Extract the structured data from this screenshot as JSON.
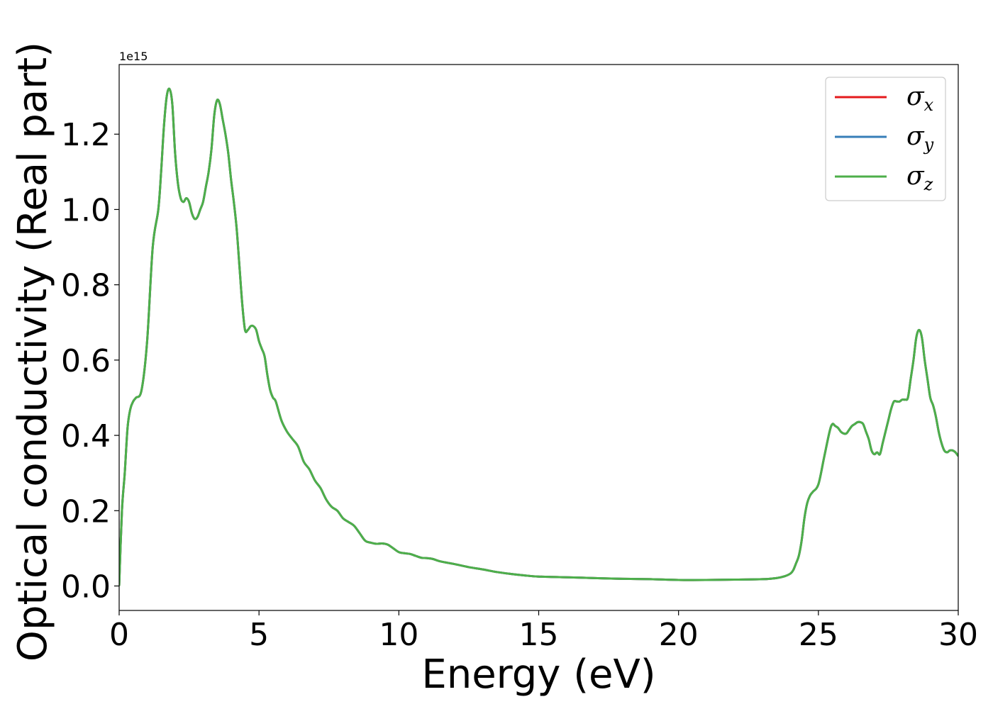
{
  "chart_data": {
    "type": "line",
    "title": "",
    "xlabel": "Energy (eV)",
    "ylabel": "Optical conductivity (Real part)",
    "offset_text": "1e15",
    "xlim": [
      0,
      30
    ],
    "ylim": [
      -0.065,
      1.385
    ],
    "xticks": [
      0,
      5,
      10,
      15,
      20,
      25,
      30
    ],
    "xtick_labels": [
      "0",
      "5",
      "10",
      "15",
      "20",
      "25",
      "30"
    ],
    "yticks": [
      0.0,
      0.2,
      0.4,
      0.6,
      0.8,
      1.0,
      1.2
    ],
    "ytick_labels": [
      "0.0",
      "0.2",
      "0.4",
      "0.6",
      "0.8",
      "1.0",
      "1.2"
    ],
    "grid": false,
    "legend_position": "top-right",
    "x": [
      0,
      0.1,
      0.2,
      0.3,
      0.4,
      0.5,
      0.6,
      0.8,
      1.0,
      1.2,
      1.4,
      1.5,
      1.6,
      1.7,
      1.8,
      1.9,
      2.0,
      2.1,
      2.2,
      2.3,
      2.4,
      2.5,
      2.6,
      2.7,
      2.8,
      2.9,
      3.0,
      3.1,
      3.2,
      3.3,
      3.4,
      3.5,
      3.6,
      3.7,
      3.8,
      3.9,
      4.0,
      4.1,
      4.2,
      4.3,
      4.4,
      4.5,
      4.6,
      4.7,
      4.8,
      4.9,
      5.0,
      5.1,
      5.2,
      5.3,
      5.4,
      5.5,
      5.6,
      5.8,
      6.0,
      6.2,
      6.4,
      6.6,
      6.8,
      7.0,
      7.2,
      7.4,
      7.6,
      7.8,
      8.0,
      8.2,
      8.4,
      8.6,
      8.8,
      9.0,
      9.2,
      9.4,
      9.6,
      9.8,
      10.0,
      10.2,
      10.4,
      10.6,
      10.8,
      11.0,
      11.2,
      11.5,
      12.0,
      12.5,
      13.0,
      13.5,
      14.0,
      14.5,
      15.0,
      16.0,
      17.0,
      18.0,
      19.0,
      20.0,
      21.0,
      22.0,
      23.0,
      23.5,
      23.8,
      24.0,
      24.1,
      24.2,
      24.3,
      24.4,
      24.5,
      24.6,
      24.7,
      24.8,
      25.0,
      25.2,
      25.4,
      25.5,
      25.6,
      25.7,
      25.8,
      25.9,
      26.0,
      26.1,
      26.2,
      26.3,
      26.4,
      26.5,
      26.6,
      26.7,
      26.8,
      26.9,
      27.0,
      27.1,
      27.2,
      27.3,
      27.4,
      27.5,
      27.6,
      27.7,
      27.8,
      27.9,
      28.0,
      28.1,
      28.2,
      28.3,
      28.4,
      28.5,
      28.6,
      28.7,
      28.8,
      28.9,
      29.0,
      29.1,
      29.2,
      29.3,
      29.4,
      29.5,
      29.6,
      29.7,
      29.8,
      29.9,
      30.0
    ],
    "series": [
      {
        "name": "σ_x",
        "label_main": "σ",
        "label_sub": "x",
        "color": "#e41a1c",
        "values": [
          0.0,
          0.2,
          0.3,
          0.42,
          0.47,
          0.49,
          0.5,
          0.52,
          0.65,
          0.9,
          1.0,
          1.1,
          1.22,
          1.3,
          1.32,
          1.28,
          1.15,
          1.07,
          1.03,
          1.02,
          1.03,
          1.02,
          0.99,
          0.975,
          0.98,
          1.0,
          1.02,
          1.06,
          1.1,
          1.16,
          1.25,
          1.29,
          1.28,
          1.24,
          1.2,
          1.15,
          1.08,
          1.02,
          0.95,
          0.85,
          0.75,
          0.68,
          0.68,
          0.69,
          0.69,
          0.68,
          0.65,
          0.63,
          0.61,
          0.56,
          0.52,
          0.5,
          0.49,
          0.44,
          0.41,
          0.39,
          0.37,
          0.33,
          0.31,
          0.28,
          0.26,
          0.23,
          0.21,
          0.2,
          0.18,
          0.17,
          0.16,
          0.14,
          0.12,
          0.115,
          0.112,
          0.113,
          0.11,
          0.1,
          0.09,
          0.087,
          0.085,
          0.08,
          0.075,
          0.074,
          0.072,
          0.065,
          0.058,
          0.05,
          0.044,
          0.037,
          0.032,
          0.028,
          0.025,
          0.023,
          0.021,
          0.019,
          0.018,
          0.016,
          0.016,
          0.017,
          0.018,
          0.021,
          0.026,
          0.033,
          0.042,
          0.06,
          0.08,
          0.12,
          0.18,
          0.22,
          0.24,
          0.25,
          0.27,
          0.34,
          0.41,
          0.43,
          0.425,
          0.42,
          0.41,
          0.405,
          0.405,
          0.415,
          0.425,
          0.43,
          0.435,
          0.435,
          0.43,
          0.41,
          0.39,
          0.36,
          0.35,
          0.355,
          0.35,
          0.38,
          0.41,
          0.44,
          0.47,
          0.49,
          0.49,
          0.49,
          0.495,
          0.495,
          0.5,
          0.55,
          0.6,
          0.66,
          0.68,
          0.66,
          0.6,
          0.55,
          0.5,
          0.48,
          0.45,
          0.41,
          0.38,
          0.36,
          0.355,
          0.36,
          0.36,
          0.355,
          0.345
        ]
      },
      {
        "name": "σ_y",
        "label_main": "σ",
        "label_sub": "y",
        "color": "#377eb8",
        "values": [
          0.0,
          0.2,
          0.3,
          0.42,
          0.47,
          0.49,
          0.5,
          0.52,
          0.65,
          0.9,
          1.0,
          1.1,
          1.22,
          1.3,
          1.32,
          1.28,
          1.15,
          1.07,
          1.03,
          1.02,
          1.03,
          1.02,
          0.99,
          0.975,
          0.98,
          1.0,
          1.02,
          1.06,
          1.1,
          1.16,
          1.25,
          1.29,
          1.28,
          1.24,
          1.2,
          1.15,
          1.08,
          1.02,
          0.95,
          0.85,
          0.75,
          0.68,
          0.68,
          0.69,
          0.69,
          0.68,
          0.65,
          0.63,
          0.61,
          0.56,
          0.52,
          0.5,
          0.49,
          0.44,
          0.41,
          0.39,
          0.37,
          0.33,
          0.31,
          0.28,
          0.26,
          0.23,
          0.21,
          0.2,
          0.18,
          0.17,
          0.16,
          0.14,
          0.12,
          0.115,
          0.112,
          0.113,
          0.11,
          0.1,
          0.09,
          0.087,
          0.085,
          0.08,
          0.075,
          0.074,
          0.072,
          0.065,
          0.058,
          0.05,
          0.044,
          0.037,
          0.032,
          0.028,
          0.025,
          0.023,
          0.021,
          0.019,
          0.018,
          0.016,
          0.016,
          0.017,
          0.018,
          0.021,
          0.026,
          0.033,
          0.042,
          0.06,
          0.08,
          0.12,
          0.18,
          0.22,
          0.24,
          0.25,
          0.27,
          0.34,
          0.41,
          0.43,
          0.425,
          0.42,
          0.41,
          0.405,
          0.405,
          0.415,
          0.425,
          0.43,
          0.435,
          0.435,
          0.43,
          0.41,
          0.39,
          0.36,
          0.35,
          0.355,
          0.35,
          0.38,
          0.41,
          0.44,
          0.47,
          0.49,
          0.49,
          0.49,
          0.495,
          0.495,
          0.5,
          0.55,
          0.6,
          0.66,
          0.68,
          0.66,
          0.6,
          0.55,
          0.5,
          0.48,
          0.45,
          0.41,
          0.38,
          0.36,
          0.355,
          0.36,
          0.36,
          0.355,
          0.345
        ]
      },
      {
        "name": "σ_z",
        "label_main": "σ",
        "label_sub": "z",
        "color": "#4daf4a",
        "values": [
          0.0,
          0.2,
          0.3,
          0.42,
          0.47,
          0.49,
          0.5,
          0.52,
          0.65,
          0.9,
          1.0,
          1.1,
          1.22,
          1.3,
          1.32,
          1.28,
          1.15,
          1.07,
          1.03,
          1.02,
          1.03,
          1.02,
          0.99,
          0.975,
          0.98,
          1.0,
          1.02,
          1.06,
          1.1,
          1.16,
          1.25,
          1.29,
          1.28,
          1.24,
          1.2,
          1.15,
          1.08,
          1.02,
          0.95,
          0.85,
          0.75,
          0.68,
          0.68,
          0.69,
          0.69,
          0.68,
          0.65,
          0.63,
          0.61,
          0.56,
          0.52,
          0.5,
          0.49,
          0.44,
          0.41,
          0.39,
          0.37,
          0.33,
          0.31,
          0.28,
          0.26,
          0.23,
          0.21,
          0.2,
          0.18,
          0.17,
          0.16,
          0.14,
          0.12,
          0.115,
          0.112,
          0.113,
          0.11,
          0.1,
          0.09,
          0.087,
          0.085,
          0.08,
          0.075,
          0.074,
          0.072,
          0.065,
          0.058,
          0.05,
          0.044,
          0.037,
          0.032,
          0.028,
          0.025,
          0.023,
          0.021,
          0.019,
          0.018,
          0.016,
          0.016,
          0.017,
          0.018,
          0.021,
          0.026,
          0.033,
          0.042,
          0.06,
          0.08,
          0.12,
          0.18,
          0.22,
          0.24,
          0.25,
          0.27,
          0.34,
          0.41,
          0.43,
          0.425,
          0.42,
          0.41,
          0.405,
          0.405,
          0.415,
          0.425,
          0.43,
          0.435,
          0.435,
          0.43,
          0.41,
          0.39,
          0.36,
          0.35,
          0.355,
          0.35,
          0.38,
          0.41,
          0.44,
          0.47,
          0.49,
          0.49,
          0.49,
          0.495,
          0.495,
          0.5,
          0.55,
          0.6,
          0.66,
          0.68,
          0.66,
          0.6,
          0.55,
          0.5,
          0.48,
          0.45,
          0.41,
          0.38,
          0.36,
          0.355,
          0.36,
          0.36,
          0.355,
          0.345
        ]
      }
    ]
  }
}
